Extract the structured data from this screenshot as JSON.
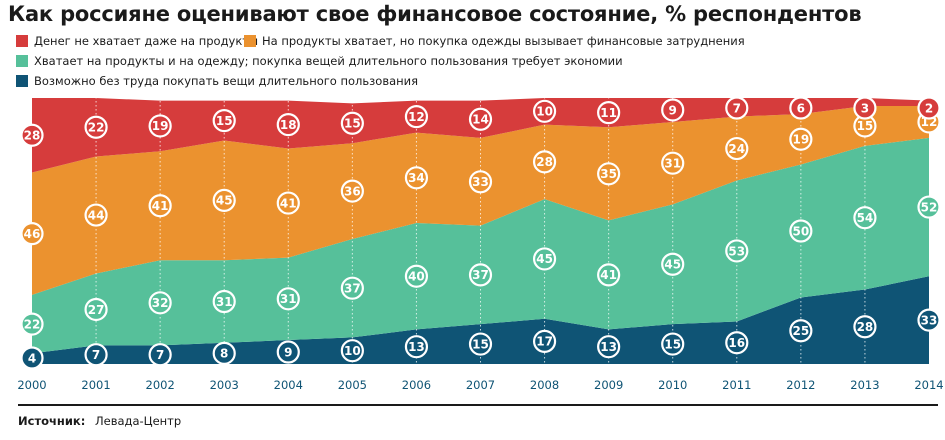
{
  "title": "Как россияне оценивают свое финансовое состояние, % респондентов",
  "source": {
    "label": "Источник:",
    "value": "Левада-Центр"
  },
  "chart_data": {
    "type": "area",
    "stacked": true,
    "categories": [
      "2000",
      "2001",
      "2002",
      "2003",
      "2004",
      "2005",
      "2006",
      "2007",
      "2008",
      "2009",
      "2010",
      "2011",
      "2012",
      "2013",
      "2014"
    ],
    "ylim": [
      0,
      100
    ],
    "grid": "vertical",
    "legend_position": "top",
    "series": [
      {
        "name": "Возможно без труда покупать вещи длительного пользования",
        "color": "#0f5475",
        "values": [
          4,
          7,
          7,
          8,
          9,
          10,
          13,
          15,
          17,
          13,
          15,
          16,
          25,
          28,
          33
        ]
      },
      {
        "name": "Хватает на продукты и на одежду; покупка вещей длительного пользования требует экономии",
        "color": "#56c09a",
        "values": [
          22,
          27,
          32,
          31,
          31,
          37,
          40,
          37,
          45,
          41,
          45,
          53,
          50,
          54,
          52
        ]
      },
      {
        "name": "На продукты хватает, но покупка одежды вызывает финансовые затруднения",
        "color": "#eb922f",
        "values": [
          46,
          44,
          41,
          45,
          41,
          36,
          34,
          33,
          28,
          35,
          31,
          24,
          19,
          15,
          12
        ]
      },
      {
        "name": "Денег не хватает даже на продукты",
        "color": "#d63c3c",
        "values": [
          28,
          22,
          19,
          15,
          18,
          15,
          12,
          14,
          10,
          11,
          9,
          7,
          6,
          3,
          2
        ]
      }
    ]
  }
}
